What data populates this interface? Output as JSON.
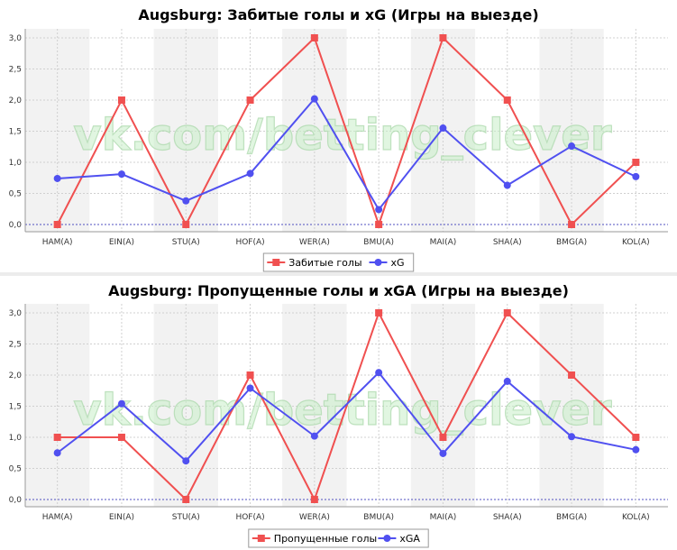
{
  "watermark": "vk.com/betting_clever",
  "colors": {
    "series_red": "#f05050",
    "series_blue": "#5050f0",
    "band": "#f2f2f2",
    "grid": "#d0d0d0",
    "zero_line": "#5050c0",
    "panel_bg": "#ffffff",
    "page_bg": "#ececec"
  },
  "chart_data": [
    {
      "type": "line",
      "title": "Augsburg: Забитые голы и xG (Игры на выезде)",
      "categories": [
        "HAM(A)",
        "EIN(A)",
        "STU(A)",
        "HOF(A)",
        "WER(A)",
        "BMU(A)",
        "MAI(A)",
        "SHA(A)",
        "BMG(A)",
        "KOL(A)"
      ],
      "yticks": [
        "0,0",
        "0,5",
        "1,0",
        "1,5",
        "2,0",
        "2,5",
        "3,0"
      ],
      "ylim": [
        0,
        3
      ],
      "series": [
        {
          "name": "Забитые голы",
          "marker": "square",
          "color": "#f05050",
          "values": [
            0,
            2,
            0,
            2,
            3,
            0,
            3,
            2,
            0,
            1
          ]
        },
        {
          "name": "xG",
          "marker": "circle",
          "color": "#5050f0",
          "values": [
            0.74,
            0.81,
            0.38,
            0.82,
            2.02,
            0.24,
            1.55,
            0.63,
            1.26,
            0.77
          ]
        }
      ],
      "legend_position": "bottom-center"
    },
    {
      "type": "line",
      "title": "Augsburg: Пропущенные голы и xGA (Игры на выезде)",
      "categories": [
        "HAM(A)",
        "EIN(A)",
        "STU(A)",
        "HOF(A)",
        "WER(A)",
        "BMU(A)",
        "MAI(A)",
        "SHA(A)",
        "BMG(A)",
        "KOL(A)"
      ],
      "yticks": [
        "0,0",
        "0,5",
        "1,0",
        "1,5",
        "2,0",
        "2,5",
        "3,0"
      ],
      "ylim": [
        0,
        3
      ],
      "series": [
        {
          "name": "Пропущенные голы",
          "marker": "square",
          "color": "#f05050",
          "values": [
            1,
            1,
            0,
            2,
            0,
            3,
            1,
            3,
            2,
            1
          ]
        },
        {
          "name": "xGA",
          "marker": "circle",
          "color": "#5050f0",
          "values": [
            0.75,
            1.54,
            0.62,
            1.79,
            1.02,
            2.04,
            0.74,
            1.9,
            1.01,
            0.8
          ]
        }
      ],
      "legend_position": "bottom-center"
    }
  ]
}
